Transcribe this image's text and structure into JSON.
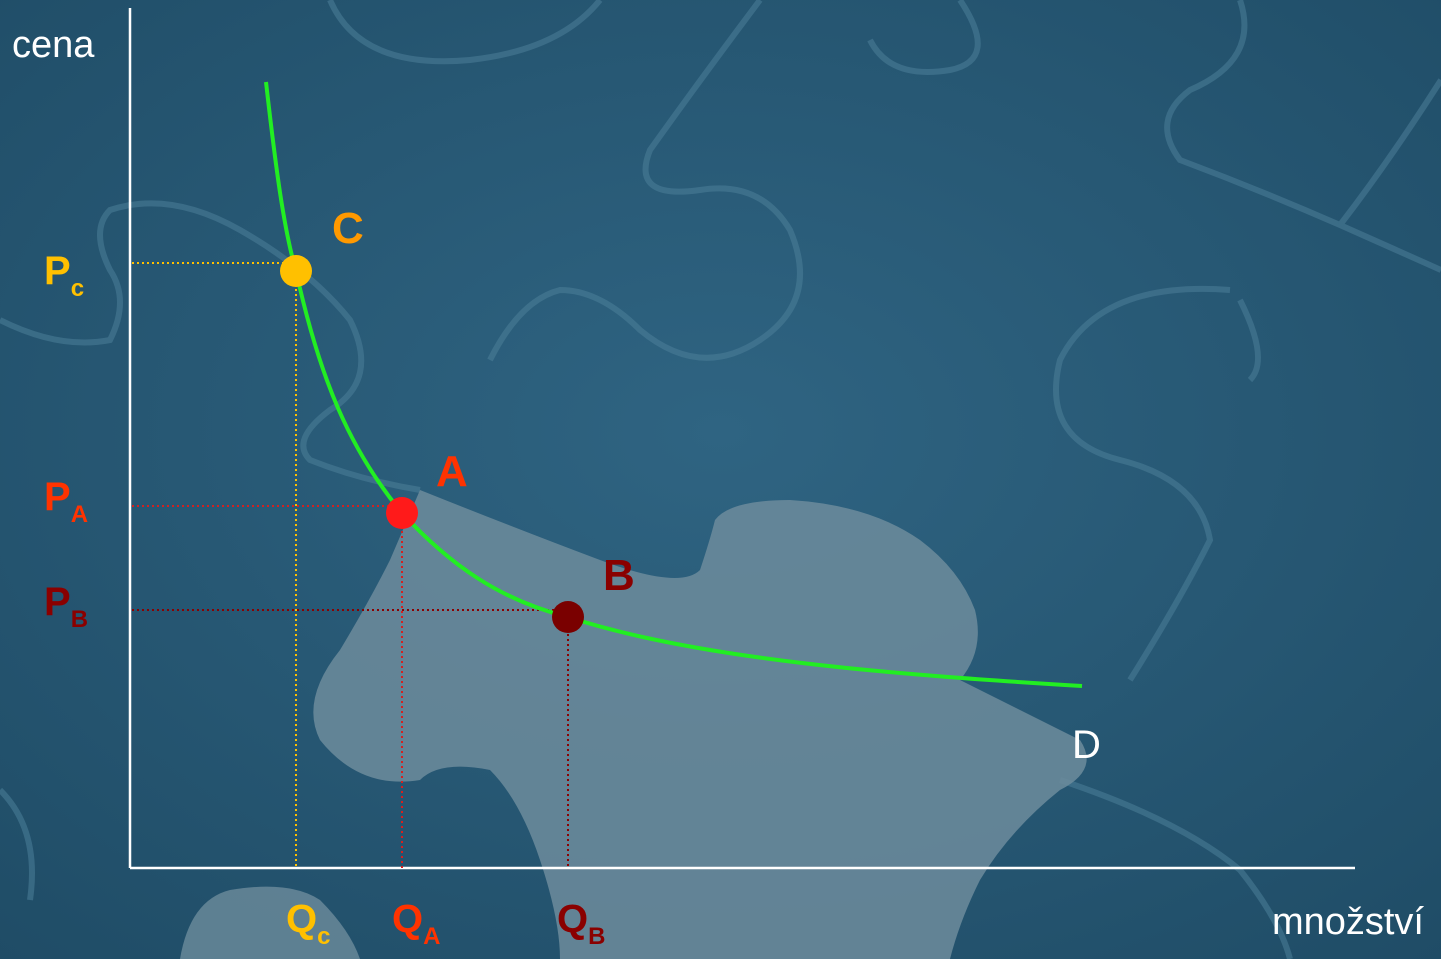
{
  "diagram": {
    "type": "demand-curve",
    "axes": {
      "y_label": "cena",
      "x_label": "množství"
    },
    "curve": {
      "label": "D",
      "color": "#22ee22"
    },
    "points": [
      {
        "id": "C",
        "label": "C",
        "color": "#ffc000",
        "label_color": "#ff9900",
        "price_label": {
          "main": "P",
          "sub": "c"
        },
        "quantity_label": {
          "main": "Q",
          "sub": "c"
        }
      },
      {
        "id": "A",
        "label": "A",
        "color": "#ff1a1a",
        "label_color": "#ff3300",
        "price_label": {
          "main": "P",
          "sub": "A"
        },
        "quantity_label": {
          "main": "Q",
          "sub": "A"
        }
      },
      {
        "id": "B",
        "label": "B",
        "color": "#7a0000",
        "label_color": "#8a0000",
        "price_label": {
          "main": "P",
          "sub": "B"
        },
        "quantity_label": {
          "main": "Q",
          "sub": "B"
        }
      }
    ],
    "colors": {
      "background": "#2b5a76",
      "axis": "#ffffff",
      "puzzle_light": "#6e8fa0"
    }
  }
}
